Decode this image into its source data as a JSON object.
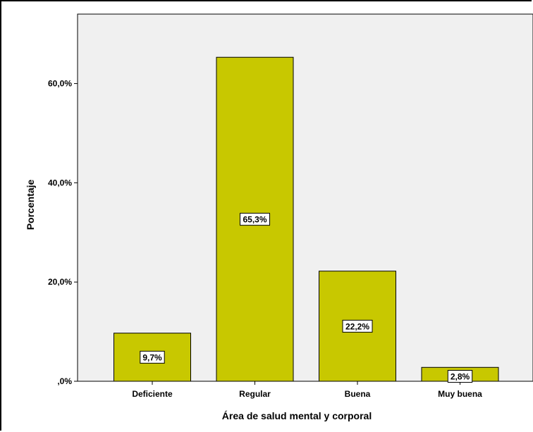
{
  "chart_data": {
    "type": "bar",
    "categories": [
      "Deficiente",
      "Regular",
      "Buena",
      "Muy buena"
    ],
    "values": [
      9.7,
      65.3,
      22.2,
      2.8
    ],
    "data_labels": [
      "9,7%",
      "65,3%",
      "22,2%",
      "2,8%"
    ],
    "title": "",
    "xlabel": "Área de salud mental y corporal",
    "ylabel": "Porcentaje",
    "ylim": [
      0,
      74
    ],
    "yticks": [
      0,
      20,
      40,
      60
    ],
    "ytick_labels": [
      ",0%",
      "20,0%",
      "40,0%",
      "60,0%"
    ],
    "grid": false,
    "colors": {
      "bar_fill": "#c8c800",
      "plot_background": "#f0f0f0",
      "label_box": "#ffffff"
    }
  }
}
